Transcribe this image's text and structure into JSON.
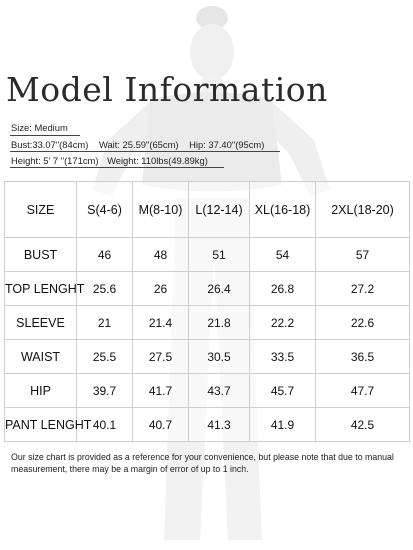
{
  "title": "Model Information",
  "model": {
    "size": "Size: Medium",
    "bust": "Bust:33.07\"(84cm)",
    "waist": "Wait: 25.59\"(65cm)",
    "hip": "Hip: 37.40\"(95cm)",
    "height": "Height: 5' 7 \"(171cm)",
    "weight": "Weight: 110lbs(49.89kg)"
  },
  "size_chart": {
    "corner": "SIZE",
    "sizes": [
      "S(4-6)",
      "M(8-10)",
      "L(12-14)",
      "XL(16-18)",
      "2XL(18-20)"
    ],
    "rows": [
      {
        "label": "BUST",
        "values": [
          "46",
          "48",
          "51",
          "54",
          "57"
        ]
      },
      {
        "label": "TOP LENGHT",
        "values": [
          "25.6",
          "26",
          "26.4",
          "26.8",
          "27.2"
        ]
      },
      {
        "label": "SLEEVE",
        "values": [
          "21",
          "21.4",
          "21.8",
          "22.2",
          "22.6"
        ]
      },
      {
        "label": "WAIST",
        "values": [
          "25.5",
          "27.5",
          "30.5",
          "33.5",
          "36.5"
        ]
      },
      {
        "label": "HIP",
        "values": [
          "39.7",
          "41.7",
          "43.7",
          "45.7",
          "47.7"
        ]
      },
      {
        "label": "PANT LENGHT",
        "values": [
          "40.1",
          "40.7",
          "41.3",
          "41.9",
          "42.5"
        ]
      }
    ]
  },
  "note": "Our size chart is provided as a reference for your convenience, but please note that due to manual measurement, there may be a margin of error of up to 1 inch."
}
